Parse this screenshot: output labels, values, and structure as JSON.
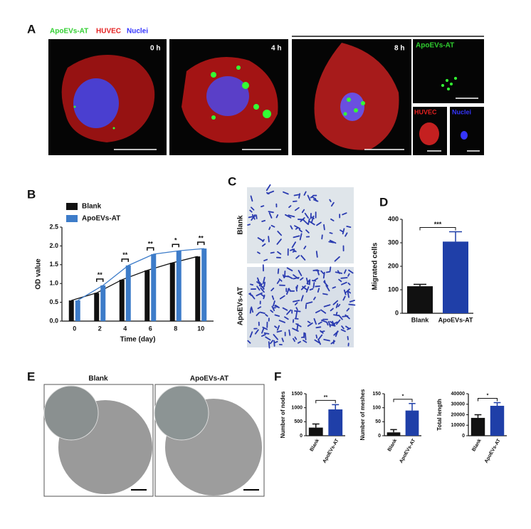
{
  "panel_labels": [
    "A",
    "B",
    "C",
    "D",
    "E",
    "F"
  ],
  "panel_a": {
    "legend": [
      "ApoEVs-AT",
      "HUVEC",
      "Nuclei"
    ],
    "time_labels": [
      "0 h",
      "4 h",
      "8 h"
    ],
    "channel_labels": [
      "ApoEVs-AT",
      "HUVEC",
      "Nuclei"
    ]
  },
  "panel_c": {
    "row_labels": [
      "Blank",
      "ApoEVs-AT"
    ]
  },
  "panel_e": {
    "titles": [
      "Blank",
      "ApoEVs-AT"
    ]
  },
  "chart_data": [
    {
      "type": "grouped_bar",
      "y_label": "OD value",
      "x_label": "Time (day)",
      "categories": [
        "0",
        "2",
        "4",
        "6",
        "8",
        "10"
      ],
      "series": [
        {
          "name": "Blank",
          "color": "#111111",
          "values": [
            0.55,
            0.75,
            1.1,
            1.35,
            1.55,
            1.72
          ]
        },
        {
          "name": "ApoEVs-AT",
          "color": "#3d7cc9",
          "values": [
            0.55,
            0.95,
            1.48,
            1.78,
            1.87,
            1.93
          ]
        }
      ],
      "significance": [
        null,
        "**",
        "**",
        "**",
        "*",
        "**"
      ],
      "ylim": [
        0,
        2.5
      ],
      "yticks": [
        {
          "value": 0,
          "label": "0.0"
        },
        0.5,
        {
          "value": 1,
          "label": "1.0"
        },
        1.5,
        {
          "value": 2,
          "label": "2.0"
        },
        2.5
      ]
    },
    {
      "type": "bar",
      "y_label": "Migrated cells",
      "categories": [
        "Blank",
        "ApoEVs-AT"
      ],
      "values": [
        115,
        305
      ],
      "errors": [
        8,
        42
      ],
      "colors": [
        "#111111",
        "#1f3fa8"
      ],
      "significance": "***",
      "ylim": [
        0,
        400
      ],
      "yticks": [
        0,
        100,
        200,
        300,
        400
      ]
    },
    {
      "type": "bar",
      "y_label": "Number of nodes",
      "categories": [
        "Blank",
        "ApoEVs-AT"
      ],
      "values": [
        290,
        940
      ],
      "errors": [
        130,
        170
      ],
      "colors": [
        "#111111",
        "#1f3fa8"
      ],
      "significance": "**",
      "ylim": [
        0,
        1500
      ],
      "yticks": [
        0,
        500,
        1000,
        1500
      ]
    },
    {
      "type": "bar",
      "y_label": "Number of meshes",
      "categories": [
        "Blank",
        "ApoEVs-AT"
      ],
      "values": [
        12,
        90
      ],
      "errors": [
        10,
        25
      ],
      "colors": [
        "#111111",
        "#1f3fa8"
      ],
      "significance": "*",
      "ylim": [
        0,
        150
      ],
      "yticks": [
        0,
        50,
        100,
        150
      ]
    },
    {
      "type": "bar",
      "y_label": "Total length",
      "categories": [
        "Blank",
        "ApoEVs-AT"
      ],
      "values": [
        17000,
        28500
      ],
      "errors": [
        3000,
        3000
      ],
      "colors": [
        "#111111",
        "#1f3fa8"
      ],
      "significance": "*",
      "ylim": [
        0,
        40000
      ],
      "yticks": [
        0,
        10000,
        20000,
        30000,
        40000
      ]
    }
  ]
}
